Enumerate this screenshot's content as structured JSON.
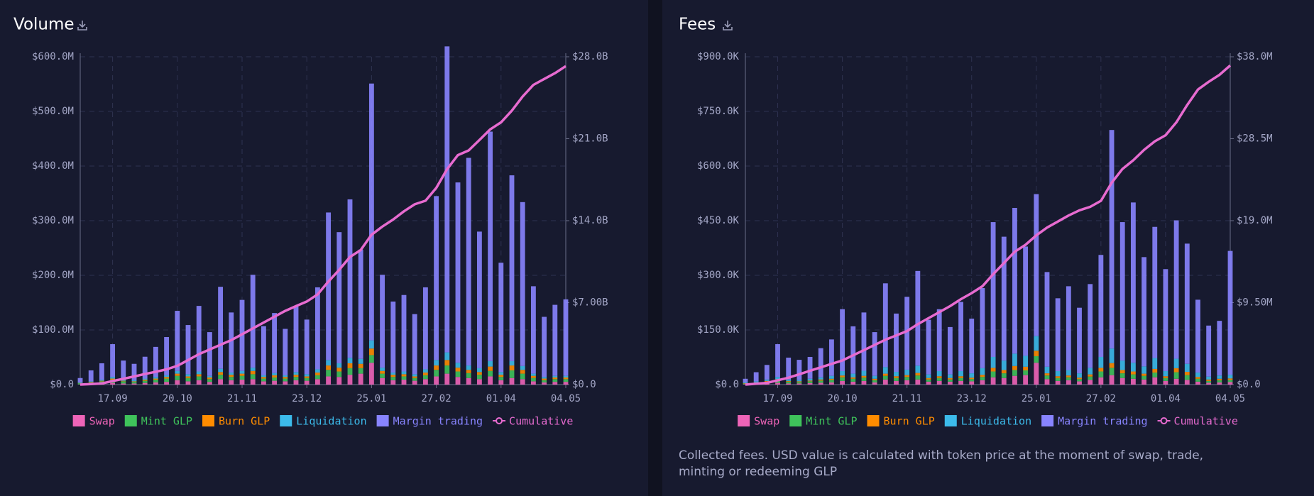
{
  "chart_data": [
    {
      "type": "bar",
      "stacked": true,
      "title": "Volume",
      "categories": [
        null,
        null,
        null,
        "17.09",
        null,
        null,
        null,
        null,
        null,
        "20.10",
        null,
        null,
        null,
        null,
        null,
        "21.11",
        null,
        null,
        null,
        null,
        null,
        "23.12",
        null,
        null,
        null,
        null,
        null,
        "25.01",
        null,
        null,
        null,
        null,
        null,
        "27.02",
        null,
        null,
        null,
        null,
        null,
        "01.04",
        null,
        null,
        null,
        null,
        null,
        "04.05"
      ],
      "series": [
        {
          "name": "Swap",
          "color": "#ee64b8",
          "values": [
            0.5,
            1,
            2,
            3,
            2,
            2,
            3,
            4,
            5,
            8,
            6,
            8,
            5,
            10,
            8,
            9,
            10,
            6,
            7,
            6,
            8,
            7,
            10,
            15,
            14,
            18,
            20,
            40,
            12,
            8,
            9,
            7,
            10,
            15,
            20,
            14,
            12,
            10,
            15,
            8,
            12,
            10,
            6,
            4,
            5,
            5
          ]
        },
        {
          "name": "Mint GLP",
          "color": "#3fc35b",
          "values": [
            2,
            3,
            4,
            6,
            4,
            3,
            4,
            5,
            6,
            8,
            6,
            7,
            5,
            8,
            6,
            7,
            9,
            5,
            6,
            5,
            6,
            5,
            7,
            12,
            10,
            12,
            10,
            14,
            8,
            6,
            6,
            5,
            7,
            12,
            15,
            10,
            9,
            8,
            10,
            6,
            14,
            10,
            6,
            4,
            5,
            5
          ]
        },
        {
          "name": "Burn GLP",
          "color": "#ff8c00",
          "values": [
            0.5,
            1,
            1,
            2,
            1,
            1,
            2,
            2,
            3,
            4,
            3,
            4,
            3,
            5,
            4,
            4,
            6,
            3,
            4,
            3,
            4,
            3,
            5,
            8,
            7,
            9,
            8,
            12,
            5,
            4,
            4,
            3,
            5,
            8,
            10,
            7,
            6,
            5,
            8,
            4,
            9,
            7,
            4,
            3,
            3,
            3
          ]
        },
        {
          "name": "Liquidation",
          "color": "#3cbbeb",
          "values": [
            1,
            1,
            2,
            3,
            2,
            2,
            2,
            3,
            3,
            5,
            4,
            5,
            3,
            6,
            4,
            5,
            6,
            3,
            4,
            3,
            5,
            4,
            6,
            10,
            8,
            10,
            9,
            15,
            6,
            4,
            5,
            4,
            6,
            10,
            14,
            9,
            8,
            7,
            10,
            5,
            8,
            7,
            4,
            3,
            3,
            3
          ]
        },
        {
          "name": "Margin trading",
          "color": "#8884ff",
          "values": [
            8,
            20,
            30,
            60,
            35,
            30,
            40,
            55,
            70,
            110,
            90,
            120,
            80,
            150,
            110,
            130,
            170,
            90,
            110,
            85,
            120,
            100,
            150,
            270,
            240,
            290,
            200,
            470,
            170,
            130,
            140,
            110,
            150,
            300,
            560,
            330,
            380,
            250,
            420,
            200,
            340,
            300,
            160,
            110,
            130,
            140
          ]
        },
        {
          "name": "Cumulative",
          "color": "#e76bd0",
          "type": "line",
          "axis": "y2",
          "values": [
            0,
            0.05,
            0.1,
            0.3,
            0.5,
            0.7,
            0.9,
            1.1,
            1.3,
            1.6,
            2.1,
            2.6,
            3.0,
            3.4,
            3.8,
            4.3,
            4.8,
            5.3,
            5.8,
            6.3,
            6.7,
            7.1,
            7.7,
            8.8,
            9.8,
            10.9,
            11.5,
            12.8,
            13.5,
            14.1,
            14.8,
            15.4,
            15.7,
            16.8,
            18.4,
            19.6,
            20.0,
            20.9,
            21.8,
            22.4,
            23.4,
            24.6,
            25.6,
            26.1,
            26.6,
            27.2
          ]
        }
      ],
      "ylim": [
        0,
        600
      ],
      "yticks": [
        {
          "value": 0,
          "label": "$0.0"
        },
        {
          "value": 100,
          "label": "$100.0M"
        },
        {
          "value": 200,
          "label": "$200.0M"
        },
        {
          "value": 300,
          "label": "$300.0M"
        },
        {
          "value": 400,
          "label": "$400.0M"
        },
        {
          "value": 500,
          "label": "$500.0M"
        },
        {
          "value": 600,
          "label": "$600.0M"
        }
      ],
      "y2lim": [
        0,
        28
      ],
      "y2ticks": [
        {
          "value": 0,
          "label": "$0.0"
        },
        {
          "value": 7,
          "label": "$7.00B"
        },
        {
          "value": 14,
          "label": "$14.0B"
        },
        {
          "value": 21,
          "label": "$21.0B"
        },
        {
          "value": 28,
          "label": "$28.0B"
        }
      ],
      "grid": true,
      "legend": "bottom"
    },
    {
      "type": "bar",
      "stacked": true,
      "title": "Fees",
      "categories": [
        null,
        null,
        null,
        "17.09",
        null,
        null,
        null,
        null,
        null,
        "20.10",
        null,
        null,
        null,
        null,
        null,
        "21.11",
        null,
        null,
        null,
        null,
        null,
        "23.12",
        null,
        null,
        null,
        null,
        null,
        "25.01",
        null,
        null,
        null,
        null,
        null,
        "27.02",
        null,
        null,
        null,
        null,
        null,
        "01.04",
        null,
        null,
        null,
        null,
        null,
        "04.05"
      ],
      "series": [
        {
          "name": "Swap",
          "color": "#ee64b8",
          "values": [
            1,
            2,
            3,
            5,
            3,
            3,
            4,
            5,
            6,
            10,
            8,
            10,
            6,
            14,
            10,
            12,
            14,
            8,
            10,
            8,
            10,
            9,
            12,
            20,
            18,
            24,
            26,
            60,
            15,
            10,
            12,
            9,
            13,
            20,
            26,
            18,
            16,
            14,
            20,
            10,
            16,
            13,
            8,
            5,
            6,
            7
          ]
        },
        {
          "name": "Mint GLP",
          "color": "#3fc35b",
          "values": [
            2,
            3,
            5,
            7,
            5,
            4,
            5,
            6,
            7,
            10,
            8,
            9,
            6,
            10,
            8,
            9,
            11,
            6,
            8,
            6,
            8,
            6,
            9,
            16,
            13,
            16,
            13,
            18,
            10,
            8,
            8,
            6,
            9,
            16,
            20,
            13,
            12,
            10,
            13,
            8,
            18,
            13,
            8,
            5,
            6,
            6
          ]
        },
        {
          "name": "Burn GLP",
          "color": "#ff8c00",
          "values": [
            1,
            1,
            2,
            3,
            2,
            2,
            2,
            3,
            3,
            5,
            4,
            5,
            4,
            6,
            5,
            5,
            7,
            4,
            5,
            4,
            5,
            4,
            6,
            10,
            9,
            11,
            10,
            15,
            6,
            5,
            5,
            4,
            6,
            10,
            13,
            9,
            8,
            6,
            10,
            5,
            11,
            9,
            5,
            4,
            4,
            4
          ]
        },
        {
          "name": "Liquidation",
          "color": "#3cbbeb",
          "values": [
            2,
            3,
            4,
            6,
            4,
            4,
            5,
            6,
            8,
            12,
            10,
            14,
            8,
            18,
            12,
            15,
            20,
            10,
            14,
            10,
            14,
            12,
            18,
            30,
            26,
            34,
            30,
            40,
            18,
            14,
            15,
            12,
            18,
            30,
            40,
            26,
            24,
            20,
            30,
            14,
            26,
            22,
            12,
            8,
            9,
            10
          ]
        },
        {
          "name": "Margin trading",
          "color": "#8884ff",
          "values": [
            10,
            25,
            40,
            90,
            60,
            55,
            60,
            80,
            100,
            170,
            130,
            160,
            120,
            230,
            160,
            200,
            260,
            150,
            170,
            130,
            190,
            150,
            220,
            370,
            340,
            400,
            300,
            390,
            260,
            200,
            230,
            180,
            230,
            280,
            600,
            380,
            440,
            300,
            360,
            280,
            380,
            330,
            200,
            140,
            150,
            340
          ]
        },
        {
          "name": "Cumulative",
          "color": "#e76bd0",
          "type": "line",
          "axis": "y2",
          "values": [
            0,
            0.1,
            0.2,
            0.5,
            0.8,
            1.2,
            1.6,
            2.0,
            2.4,
            2.8,
            3.4,
            4.0,
            4.6,
            5.2,
            5.7,
            6.2,
            7.0,
            7.7,
            8.4,
            9.1,
            9.9,
            10.6,
            11.4,
            12.8,
            14.1,
            15.4,
            16.2,
            17.3,
            18.2,
            18.9,
            19.6,
            20.2,
            20.6,
            21.3,
            23.4,
            25.0,
            26.0,
            27.2,
            28.2,
            28.9,
            30.4,
            32.4,
            34.2,
            35.1,
            35.9,
            37.0
          ]
        }
      ],
      "ylim": [
        0,
        900
      ],
      "yticks": [
        {
          "value": 0,
          "label": "$0.0"
        },
        {
          "value": 150,
          "label": "$150.0K"
        },
        {
          "value": 300,
          "label": "$300.0K"
        },
        {
          "value": 450,
          "label": "$450.0K"
        },
        {
          "value": 600,
          "label": "$600.0K"
        },
        {
          "value": 750,
          "label": "$750.0K"
        },
        {
          "value": 900,
          "label": "$900.0K"
        }
      ],
      "y2lim": [
        0,
        38
      ],
      "y2ticks": [
        {
          "value": 0,
          "label": "$0.0"
        },
        {
          "value": 9.5,
          "label": "$9.50M"
        },
        {
          "value": 19,
          "label": "$19.0M"
        },
        {
          "value": 28.5,
          "label": "$28.5M"
        },
        {
          "value": 38,
          "label": "$38.0M"
        }
      ],
      "grid": true,
      "legend": "bottom",
      "caption": "Collected fees. USD value is calculated with token price at the moment of swap, trade, minting or redeeming GLP"
    }
  ]
}
